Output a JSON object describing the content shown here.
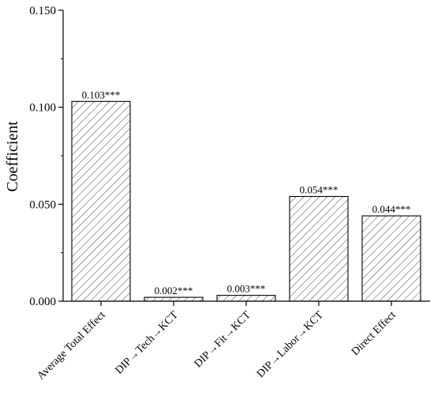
{
  "chart_data": {
    "type": "bar",
    "title": "",
    "xlabel": "",
    "ylabel": "Coefficient",
    "ylim": [
      0,
      0.15
    ],
    "y_ticks": [
      "0.000",
      "0.050",
      "0.100",
      "0.150"
    ],
    "y_tick_values": [
      0,
      0.05,
      0.1,
      0.15
    ],
    "categories": [
      "Average Total Effect",
      "DIP→Tech→KCT",
      "DIP→Fit→KCT",
      "DIP→Labor→KCT",
      "Direct Effect"
    ],
    "values": [
      0.103,
      0.002,
      0.003,
      0.054,
      0.044
    ],
    "data_labels": [
      "0.103***",
      "0.002***",
      "0.003***",
      "0.054***",
      "0.044***"
    ],
    "bar_fill": "hatched diagonal lines",
    "grid": false,
    "legend": "none"
  }
}
